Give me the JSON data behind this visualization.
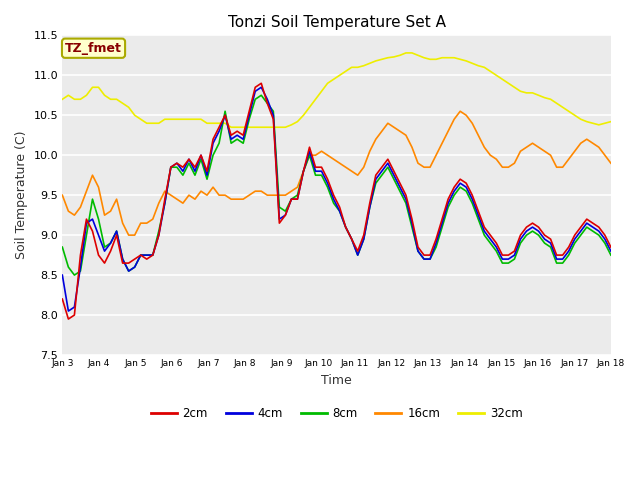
{
  "title": "Tonzi Soil Temperature Set A",
  "xlabel": "Time",
  "ylabel": "Soil Temperature (C)",
  "ylim": [
    7.5,
    11.5
  ],
  "xtick_labels": [
    "Jan 3",
    "Jan 4",
    "Jan 5",
    "Jan 6",
    "Jan 7",
    "Jan 8",
    "Jan 9",
    "Jan 10",
    "Jan 11",
    "Jan 12",
    "Jan 13",
    "Jan 14",
    "Jan 15",
    "Jan 16",
    "Jan 17",
    "Jan 18"
  ],
  "ytick_values": [
    7.5,
    8.0,
    8.5,
    9.0,
    9.5,
    10.0,
    10.5,
    11.0,
    11.5
  ],
  "colors": {
    "2cm": "#dd0000",
    "4cm": "#0000dd",
    "8cm": "#00bb00",
    "16cm": "#ff8800",
    "32cm": "#eeee00"
  },
  "annotation_text": "TZ_fmet",
  "annotation_color": "#880000",
  "annotation_bg": "#ffffcc",
  "annotation_edge": "#aaaa00",
  "fig_bg": "#ffffff",
  "plot_bg": "#ebebeb",
  "series": {
    "2cm": [
      8.2,
      7.95,
      8.0,
      8.75,
      9.2,
      9.05,
      8.75,
      8.65,
      8.8,
      9.0,
      8.65,
      8.65,
      8.7,
      8.75,
      8.7,
      8.75,
      9.0,
      9.45,
      9.85,
      9.9,
      9.85,
      9.95,
      9.85,
      10.0,
      9.8,
      10.2,
      10.35,
      10.5,
      10.25,
      10.3,
      10.25,
      10.55,
      10.85,
      10.9,
      10.65,
      10.45,
      9.15,
      9.25,
      9.45,
      9.45,
      9.8,
      10.1,
      9.85,
      9.85,
      9.7,
      9.5,
      9.35,
      9.1,
      8.95,
      8.8,
      9.0,
      9.4,
      9.75,
      9.85,
      9.95,
      9.8,
      9.65,
      9.5,
      9.2,
      8.85,
      8.75,
      8.75,
      8.95,
      9.2,
      9.45,
      9.6,
      9.7,
      9.65,
      9.5,
      9.3,
      9.1,
      9.0,
      8.9,
      8.75,
      8.75,
      8.8,
      9.0,
      9.1,
      9.15,
      9.1,
      9.0,
      8.95,
      8.75,
      8.75,
      8.85,
      9.0,
      9.1,
      9.2,
      9.15,
      9.1,
      9.0,
      8.85
    ],
    "4cm": [
      8.5,
      8.05,
      8.1,
      8.6,
      9.15,
      9.2,
      9.0,
      8.8,
      8.9,
      9.05,
      8.7,
      8.55,
      8.6,
      8.75,
      8.75,
      8.75,
      9.0,
      9.4,
      9.85,
      9.9,
      9.8,
      9.95,
      9.8,
      10.0,
      9.75,
      10.15,
      10.3,
      10.5,
      10.2,
      10.25,
      10.2,
      10.5,
      10.8,
      10.85,
      10.7,
      10.5,
      9.2,
      9.25,
      9.45,
      9.45,
      9.8,
      10.05,
      9.8,
      9.8,
      9.65,
      9.45,
      9.3,
      9.1,
      8.95,
      8.75,
      8.95,
      9.35,
      9.7,
      9.8,
      9.9,
      9.75,
      9.6,
      9.45,
      9.15,
      8.8,
      8.7,
      8.7,
      8.9,
      9.15,
      9.4,
      9.55,
      9.65,
      9.6,
      9.45,
      9.25,
      9.05,
      8.95,
      8.85,
      8.7,
      8.7,
      8.75,
      8.95,
      9.05,
      9.1,
      9.05,
      8.95,
      8.9,
      8.7,
      8.7,
      8.8,
      8.95,
      9.05,
      9.15,
      9.1,
      9.05,
      8.95,
      8.8
    ],
    "8cm": [
      8.85,
      8.6,
      8.5,
      8.55,
      9.0,
      9.45,
      9.2,
      8.85,
      8.9,
      9.05,
      8.7,
      8.55,
      8.6,
      8.75,
      8.75,
      8.75,
      9.05,
      9.4,
      9.85,
      9.85,
      9.75,
      9.9,
      9.75,
      9.95,
      9.7,
      10.0,
      10.15,
      10.55,
      10.15,
      10.2,
      10.15,
      10.45,
      10.7,
      10.75,
      10.65,
      10.55,
      9.35,
      9.3,
      9.45,
      9.5,
      9.8,
      10.0,
      9.75,
      9.75,
      9.6,
      9.4,
      9.3,
      9.1,
      8.95,
      8.75,
      8.95,
      9.35,
      9.65,
      9.75,
      9.85,
      9.7,
      9.55,
      9.4,
      9.1,
      8.8,
      8.7,
      8.7,
      8.85,
      9.1,
      9.35,
      9.5,
      9.6,
      9.55,
      9.4,
      9.2,
      9.0,
      8.9,
      8.8,
      8.65,
      8.65,
      8.7,
      8.9,
      9.0,
      9.05,
      9.0,
      8.9,
      8.85,
      8.65,
      8.65,
      8.75,
      8.9,
      9.0,
      9.1,
      9.05,
      9.0,
      8.9,
      8.75
    ],
    "16cm": [
      9.5,
      9.3,
      9.25,
      9.35,
      9.55,
      9.75,
      9.6,
      9.25,
      9.3,
      9.45,
      9.15,
      9.0,
      9.0,
      9.15,
      9.15,
      9.2,
      9.4,
      9.55,
      9.5,
      9.45,
      9.4,
      9.5,
      9.45,
      9.55,
      9.5,
      9.6,
      9.5,
      9.5,
      9.45,
      9.45,
      9.45,
      9.5,
      9.55,
      9.55,
      9.5,
      9.5,
      9.5,
      9.5,
      9.55,
      9.6,
      9.8,
      10.0,
      10.0,
      10.05,
      10.0,
      9.95,
      9.9,
      9.85,
      9.8,
      9.75,
      9.85,
      10.05,
      10.2,
      10.3,
      10.4,
      10.35,
      10.3,
      10.25,
      10.1,
      9.9,
      9.85,
      9.85,
      10.0,
      10.15,
      10.3,
      10.45,
      10.55,
      10.5,
      10.4,
      10.25,
      10.1,
      10.0,
      9.95,
      9.85,
      9.85,
      9.9,
      10.05,
      10.1,
      10.15,
      10.1,
      10.05,
      10.0,
      9.85,
      9.85,
      9.95,
      10.05,
      10.15,
      10.2,
      10.15,
      10.1,
      10.0,
      9.9
    ],
    "32cm": [
      10.7,
      10.75,
      10.7,
      10.7,
      10.75,
      10.85,
      10.85,
      10.75,
      10.7,
      10.7,
      10.65,
      10.6,
      10.5,
      10.45,
      10.4,
      10.4,
      10.4,
      10.45,
      10.45,
      10.45,
      10.45,
      10.45,
      10.45,
      10.45,
      10.4,
      10.4,
      10.4,
      10.4,
      10.35,
      10.35,
      10.35,
      10.35,
      10.35,
      10.35,
      10.35,
      10.35,
      10.35,
      10.35,
      10.38,
      10.42,
      10.5,
      10.6,
      10.7,
      10.8,
      10.9,
      10.95,
      11.0,
      11.05,
      11.1,
      11.1,
      11.12,
      11.15,
      11.18,
      11.2,
      11.22,
      11.23,
      11.25,
      11.28,
      11.28,
      11.25,
      11.22,
      11.2,
      11.2,
      11.22,
      11.22,
      11.22,
      11.2,
      11.18,
      11.15,
      11.12,
      11.1,
      11.05,
      11.0,
      10.95,
      10.9,
      10.85,
      10.8,
      10.78,
      10.78,
      10.75,
      10.72,
      10.7,
      10.65,
      10.6,
      10.55,
      10.5,
      10.45,
      10.42,
      10.4,
      10.38,
      10.4,
      10.42
    ]
  }
}
